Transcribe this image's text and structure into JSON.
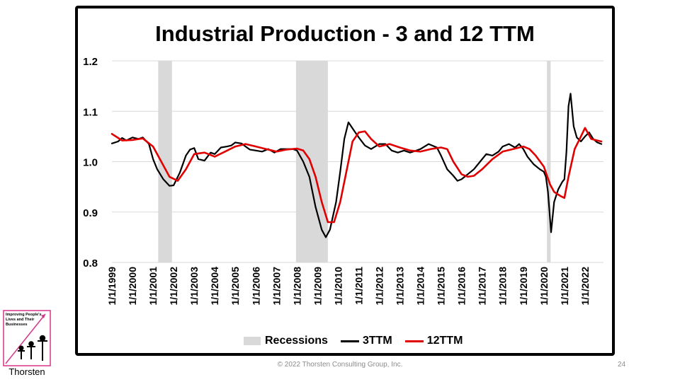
{
  "colors": {
    "recession": "#d9d9d9",
    "series_3ttm": "#000000",
    "series_12ttm": "#e00000",
    "grid": "#d9d9d9"
  },
  "footer": {
    "copyright": "© 2022 Thorsten Consulting Group, Inc.",
    "page_number": "24"
  },
  "logo": {
    "name": "Thorsten",
    "slogan": "Improving People's Lives and Their Businesses"
  },
  "chart_data": {
    "type": "line",
    "title": "Industrial Production - 3 and 12 TTM",
    "xlabel": "",
    "ylabel": "",
    "ylim": [
      0.8,
      1.2
    ],
    "yticks": [
      "0.8",
      "0.9",
      "1.0",
      "1.1",
      "1.2"
    ],
    "xlim": [
      1999.0,
      2022.9
    ],
    "xticks": [
      "1/1/1999",
      "1/1/2000",
      "1/1/2001",
      "1/1/2002",
      "1/1/2003",
      "1/1/2004",
      "1/1/2005",
      "1/1/2006",
      "1/1/2007",
      "1/1/2008",
      "1/1/2009",
      "1/1/2010",
      "1/1/2011",
      "1/1/2012",
      "1/1/2013",
      "1/1/2014",
      "1/1/2015",
      "1/1/2016",
      "1/1/2017",
      "1/1/2018",
      "1/1/2019",
      "1/1/2020",
      "1/1/2021",
      "1/1/2022"
    ],
    "grid": true,
    "legend_position": "bottom",
    "recessions": [
      [
        2001.25,
        2001.92
      ],
      [
        2007.95,
        2009.5
      ],
      [
        2020.15,
        2020.33
      ]
    ],
    "legend": [
      "Recessions",
      "3TTM",
      "12TTM"
    ],
    "series": [
      {
        "name": "3TTM",
        "x": [
          1999.0,
          1999.3,
          1999.5,
          1999.7,
          2000.0,
          2000.3,
          2000.5,
          2000.8,
          2001.0,
          2001.2,
          2001.5,
          2001.8,
          2002.0,
          2002.3,
          2002.6,
          2002.8,
          2003.0,
          2003.2,
          2003.5,
          2003.8,
          2004.0,
          2004.3,
          2004.6,
          2004.8,
          2005.0,
          2005.3,
          2005.5,
          2005.7,
          2006.0,
          2006.3,
          2006.6,
          2006.9,
          2007.2,
          2007.5,
          2007.8,
          2008.0,
          2008.3,
          2008.6,
          2008.9,
          2009.2,
          2009.4,
          2009.6,
          2009.9,
          2010.1,
          2010.3,
          2010.5,
          2010.8,
          2011.0,
          2011.3,
          2011.6,
          2012.0,
          2012.3,
          2012.6,
          2012.9,
          2013.2,
          2013.5,
          2013.8,
          2014.0,
          2014.4,
          2014.8,
          2015.0,
          2015.3,
          2015.6,
          2015.8,
          2016.0,
          2016.3,
          2016.6,
          2016.9,
          2017.2,
          2017.5,
          2017.8,
          2018.0,
          2018.3,
          2018.6,
          2018.8,
          2019.0,
          2019.2,
          2019.5,
          2019.8,
          2020.0,
          2020.1,
          2020.2,
          2020.35,
          2020.5,
          2020.7,
          2020.9,
          2021.0,
          2021.1,
          2021.2,
          2021.3,
          2021.45,
          2021.6,
          2021.8,
          2022.0,
          2022.2,
          2022.4,
          2022.6,
          2022.8
        ],
        "values": [
          1.036,
          1.04,
          1.047,
          1.042,
          1.048,
          1.045,
          1.048,
          1.035,
          1.005,
          0.985,
          0.965,
          0.952,
          0.953,
          0.978,
          1.012,
          1.024,
          1.027,
          1.005,
          1.002,
          1.018,
          1.015,
          1.028,
          1.03,
          1.032,
          1.038,
          1.036,
          1.03,
          1.024,
          1.022,
          1.02,
          1.025,
          1.018,
          1.025,
          1.025,
          1.025,
          1.022,
          1.0,
          0.97,
          0.91,
          0.865,
          0.85,
          0.865,
          0.92,
          0.98,
          1.045,
          1.078,
          1.06,
          1.048,
          1.032,
          1.025,
          1.035,
          1.035,
          1.022,
          1.018,
          1.022,
          1.018,
          1.022,
          1.025,
          1.035,
          1.028,
          1.012,
          0.985,
          0.972,
          0.962,
          0.965,
          0.975,
          0.985,
          1.0,
          1.015,
          1.012,
          1.02,
          1.03,
          1.035,
          1.028,
          1.035,
          1.025,
          1.01,
          0.995,
          0.985,
          0.98,
          0.97,
          0.94,
          0.86,
          0.92,
          0.945,
          0.96,
          0.965,
          1.02,
          1.11,
          1.135,
          1.07,
          1.048,
          1.04,
          1.05,
          1.058,
          1.045,
          1.038,
          1.035
        ]
      },
      {
        "name": "12TTM",
        "x": [
          1999.0,
          1999.5,
          2000.0,
          2000.5,
          2001.0,
          2001.4,
          2001.8,
          2002.2,
          2002.6,
          2003.0,
          2003.5,
          2004.0,
          2004.5,
          2005.0,
          2005.5,
          2006.0,
          2006.5,
          2007.0,
          2007.5,
          2008.0,
          2008.3,
          2008.6,
          2008.9,
          2009.2,
          2009.5,
          2009.8,
          2010.1,
          2010.4,
          2010.7,
          2011.0,
          2011.3,
          2011.6,
          2012.0,
          2012.5,
          2013.0,
          2013.5,
          2014.0,
          2014.5,
          2015.0,
          2015.3,
          2015.6,
          2016.0,
          2016.3,
          2016.6,
          2017.0,
          2017.5,
          2018.0,
          2018.5,
          2019.0,
          2019.3,
          2019.6,
          2020.0,
          2020.3,
          2020.5,
          2020.8,
          2021.0,
          2021.2,
          2021.5,
          2021.8,
          2022.0,
          2022.3,
          2022.6,
          2022.8
        ],
        "values": [
          1.055,
          1.042,
          1.043,
          1.046,
          1.03,
          1.0,
          0.97,
          0.962,
          0.985,
          1.015,
          1.018,
          1.01,
          1.02,
          1.03,
          1.035,
          1.03,
          1.025,
          1.02,
          1.024,
          1.026,
          1.022,
          1.005,
          0.97,
          0.92,
          0.88,
          0.88,
          0.92,
          0.98,
          1.04,
          1.058,
          1.06,
          1.045,
          1.03,
          1.035,
          1.028,
          1.022,
          1.02,
          1.025,
          1.028,
          1.025,
          1.0,
          0.975,
          0.97,
          0.972,
          0.985,
          1.005,
          1.02,
          1.025,
          1.03,
          1.025,
          1.012,
          0.99,
          0.955,
          0.94,
          0.932,
          0.928,
          0.97,
          1.025,
          1.05,
          1.067,
          1.045,
          1.042,
          1.04
        ]
      }
    ]
  }
}
